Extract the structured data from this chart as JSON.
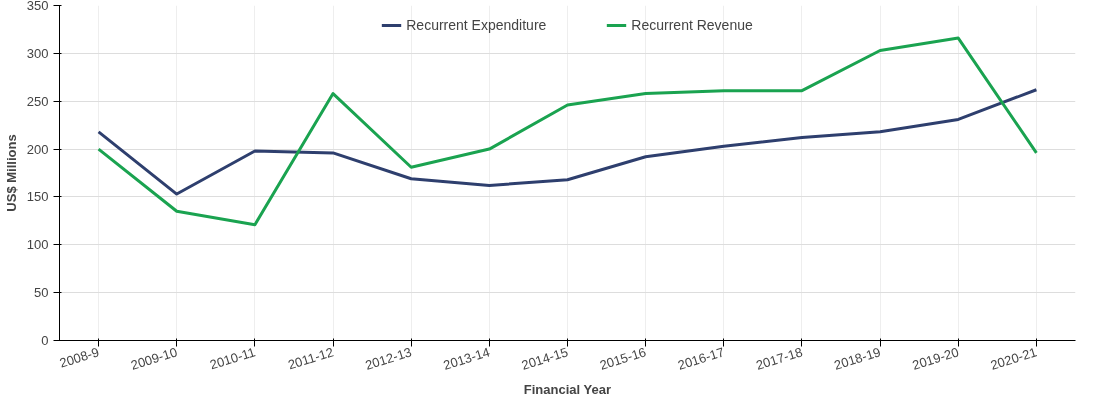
{
  "chart_data": {
    "type": "line",
    "xlabel": "Financial Year",
    "ylabel": "US$ Millions",
    "categories": [
      "2008-9",
      "2009-10",
      "2010-11",
      "2011-12",
      "2012-13",
      "2013-14",
      "2014-15",
      "2015-16",
      "2016-17",
      "2017-18",
      "2018-19",
      "2019-20",
      "2020-21"
    ],
    "series": [
      {
        "name": "Recurrent Expenditure",
        "color": "#2e3f6e",
        "values": [
          218,
          153,
          198,
          196,
          169,
          162,
          168,
          192,
          203,
          212,
          218,
          231,
          262
        ]
      },
      {
        "name": "Recurrent Revenue",
        "color": "#1aa350",
        "values": [
          200,
          135,
          121,
          258,
          181,
          200,
          246,
          258,
          261,
          261,
          303,
          316,
          196
        ]
      }
    ],
    "ylim": [
      0,
      350
    ],
    "yticks": [
      0,
      50,
      100,
      150,
      200,
      250,
      300,
      350
    ],
    "grid": true,
    "legend": "top",
    "marker": "none",
    "line_style": "solid"
  }
}
